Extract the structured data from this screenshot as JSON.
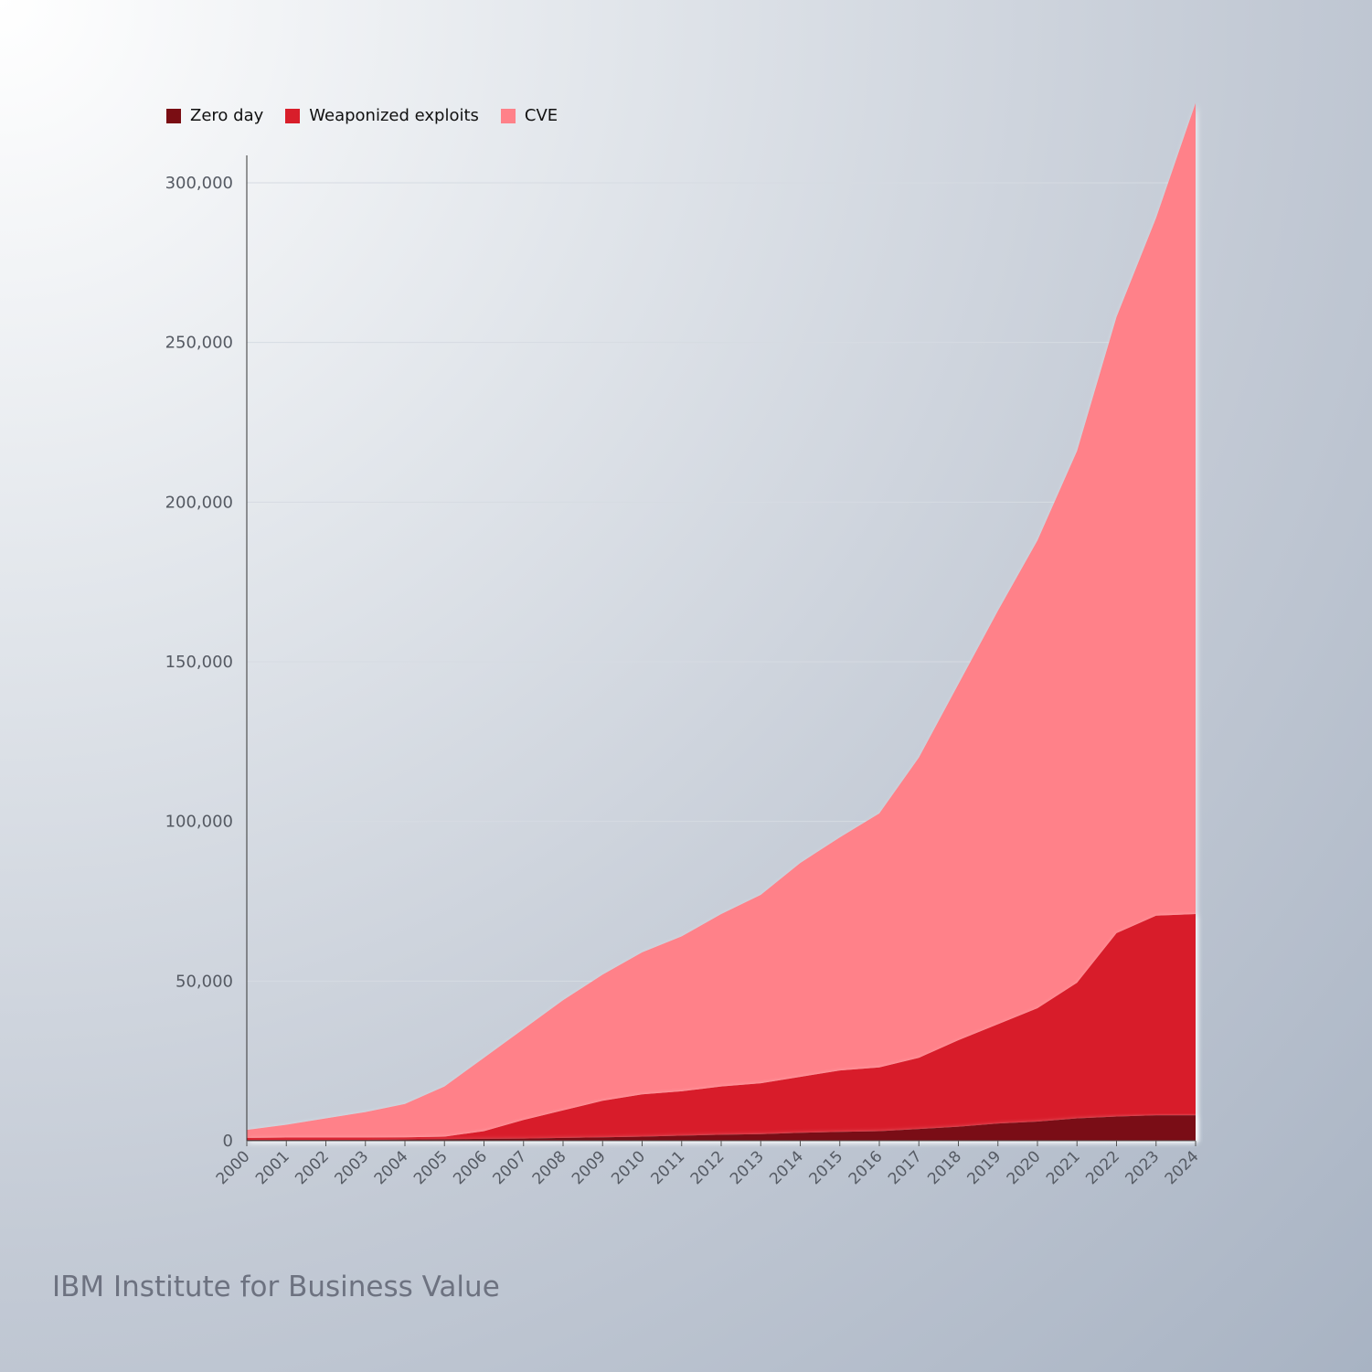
{
  "chart_data": {
    "type": "area",
    "title": "",
    "xlabel": "",
    "ylabel": "",
    "x": [
      "2000",
      "2001",
      "2002",
      "2003",
      "2004",
      "2005",
      "2006",
      "2007",
      "2008",
      "2009",
      "2010",
      "2011",
      "2012",
      "2013",
      "2014",
      "2015",
      "2016",
      "2017",
      "2018",
      "2019",
      "2020",
      "2021",
      "2022",
      "2023",
      "2024"
    ],
    "ylim": [
      0,
      310000
    ],
    "yticks": [
      0,
      50000,
      100000,
      150000,
      200000,
      250000,
      300000
    ],
    "ytick_labels": [
      "0",
      "50,000",
      "100,000",
      "150,000",
      "200,000",
      "250,000",
      "300,000"
    ],
    "grid": true,
    "legend_position": "top-left",
    "series": [
      {
        "name": "CVE",
        "color": "#ff8189",
        "values": [
          3400,
          5000,
          7000,
          9000,
          11500,
          17000,
          26000,
          35000,
          44000,
          52000,
          59000,
          64000,
          71000,
          77000,
          87000,
          95000,
          102500,
          120000,
          143000,
          166000,
          188000,
          216000,
          258000,
          289000,
          325000
        ]
      },
      {
        "name": "Weaponized exploits",
        "color": "#d81e2a",
        "values": [
          900,
          1000,
          1000,
          1000,
          1100,
          1300,
          3000,
          6500,
          9500,
          12500,
          14500,
          15500,
          17000,
          18000,
          20000,
          22000,
          23000,
          26000,
          31500,
          36500,
          41500,
          49500,
          65000,
          70500,
          71000
        ]
      },
      {
        "name": "Zero day",
        "color": "#7a0d13",
        "values": [
          300,
          300,
          300,
          300,
          400,
          500,
          600,
          700,
          900,
          1100,
          1300,
          1600,
          1900,
          2100,
          2500,
          2800,
          3000,
          3700,
          4400,
          5400,
          6000,
          7000,
          7600,
          8000,
          8000
        ]
      }
    ]
  },
  "legend": [
    {
      "label": "Zero day",
      "color": "#7a0d13"
    },
    {
      "label": "Weaponized exploits",
      "color": "#d81e2a"
    },
    {
      "label": "CVE",
      "color": "#ff8189"
    }
  ],
  "brand": "IBM Institute for Business Value"
}
